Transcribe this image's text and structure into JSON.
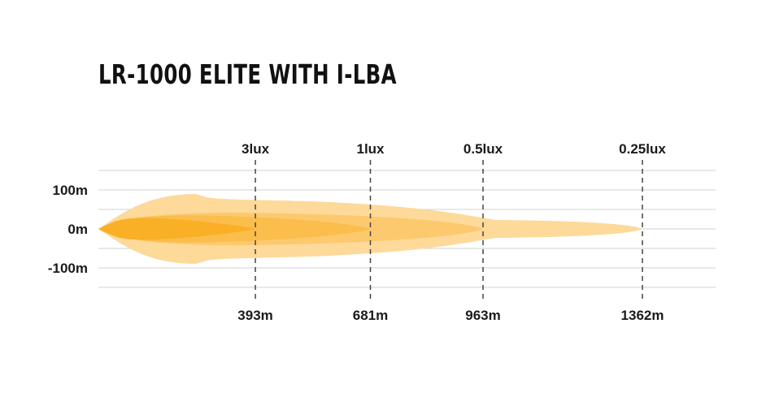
{
  "chart_data": {
    "type": "area",
    "title": "LR-1000 ELITE WITH I-LBA",
    "y_ticks": [
      {
        "label": "100m",
        "value": 100
      },
      {
        "label": "0m",
        "value": 0
      },
      {
        "label": "-100m",
        "value": -100
      }
    ],
    "ylim": [
      -150,
      150
    ],
    "xlim": [
      0,
      1545
    ],
    "grid": true,
    "markers": [
      {
        "lux": "3lux",
        "distance": "393m",
        "x": 393
      },
      {
        "lux": "1lux",
        "distance": "681m",
        "x": 681
      },
      {
        "lux": "0.5lux",
        "distance": "963m",
        "x": 963
      },
      {
        "lux": "0.25lux",
        "distance": "1362m",
        "x": 1362
      }
    ],
    "beam_layers": [
      {
        "reach": 1362,
        "half_width": 75,
        "color": "#fdd99a"
      },
      {
        "reach": 963,
        "half_width": 42,
        "color": "#fcc96e"
      },
      {
        "reach": 681,
        "half_width": 35,
        "color": "#fbbd4c"
      },
      {
        "reach": 393,
        "half_width": 28,
        "color": "#f9b027"
      }
    ]
  }
}
